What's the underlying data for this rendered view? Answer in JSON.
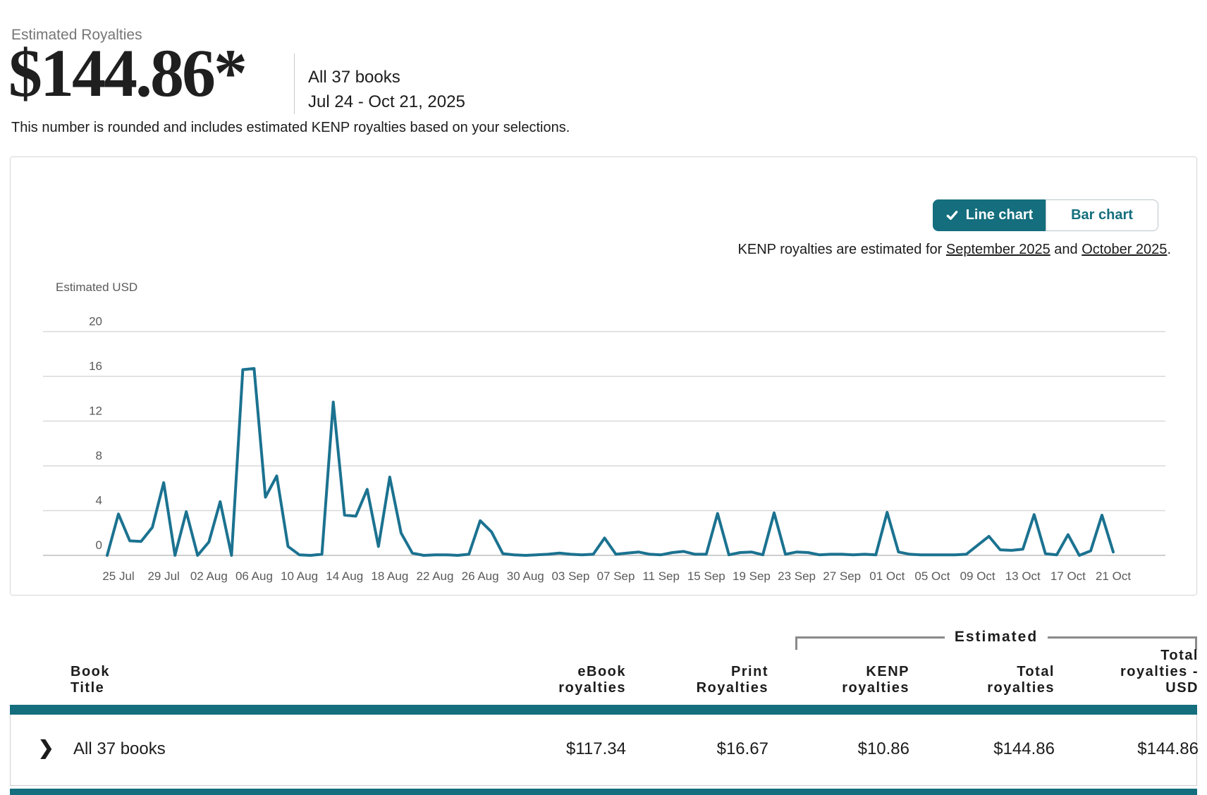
{
  "colors": {
    "accent_teal": "#146e7d",
    "line": "#1b7290",
    "text_dark": "#1c1c1c",
    "text_gray": "#767676",
    "axis_text": "#5a5a5a",
    "grid": "#d9d9d9",
    "grid_zero": "#bdbdbd",
    "panel_border": "#d5d5d5",
    "bracket": "#8a8a8a"
  },
  "header": {
    "label": "Estimated Royalties",
    "amount": "$144.86*",
    "scope": "All 37 books",
    "date_range": "Jul 24 - Oct 21, 2025",
    "note": "This number is rounded and includes estimated KENP royalties based on your selections."
  },
  "chart_panel": {
    "toggle": {
      "line_label": "Line chart",
      "bar_label": "Bar chart",
      "selected": "Line chart"
    },
    "kenp_note": {
      "prefix": "KENP royalties are estimated for ",
      "link1": "September 2025",
      "middle": " and ",
      "link2": "October 2025",
      "suffix": "."
    }
  },
  "chart_data": {
    "type": "line",
    "title": "",
    "xlabel": "",
    "ylabel": "Estimated USD",
    "ylim": [
      0,
      20
    ],
    "grid": true,
    "legend": "none",
    "y_ticks": [
      20,
      16,
      12,
      8,
      4,
      0
    ],
    "x_tick_labels": [
      "25 Jul",
      "29 Jul",
      "02 Aug",
      "06 Aug",
      "10 Aug",
      "14 Aug",
      "18 Aug",
      "22 Aug",
      "26 Aug",
      "30 Aug",
      "03 Sep",
      "07 Sep",
      "11 Sep",
      "15 Sep",
      "19 Sep",
      "23 Sep",
      "27 Sep",
      "01 Oct",
      "05 Oct",
      "09 Oct",
      "13 Oct",
      "17 Oct",
      "21 Oct"
    ],
    "x": [
      "Jul 24",
      "Jul 25",
      "Jul 26",
      "Jul 27",
      "Jul 28",
      "Jul 29",
      "Jul 30",
      "Jul 31",
      "Aug 01",
      "Aug 02",
      "Aug 03",
      "Aug 04",
      "Aug 05",
      "Aug 06",
      "Aug 07",
      "Aug 08",
      "Aug 09",
      "Aug 10",
      "Aug 11",
      "Aug 12",
      "Aug 13",
      "Aug 14",
      "Aug 15",
      "Aug 16",
      "Aug 17",
      "Aug 18",
      "Aug 19",
      "Aug 20",
      "Aug 21",
      "Aug 22",
      "Aug 23",
      "Aug 24",
      "Aug 25",
      "Aug 26",
      "Aug 27",
      "Aug 28",
      "Aug 29",
      "Aug 30",
      "Aug 31",
      "Sep 01",
      "Sep 02",
      "Sep 03",
      "Sep 04",
      "Sep 05",
      "Sep 06",
      "Sep 07",
      "Sep 08",
      "Sep 09",
      "Sep 10",
      "Sep 11",
      "Sep 12",
      "Sep 13",
      "Sep 14",
      "Sep 15",
      "Sep 16",
      "Sep 17",
      "Sep 18",
      "Sep 19",
      "Sep 20",
      "Sep 21",
      "Sep 22",
      "Sep 23",
      "Sep 24",
      "Sep 25",
      "Sep 26",
      "Sep 27",
      "Sep 28",
      "Sep 29",
      "Sep 30",
      "Oct 01",
      "Oct 02",
      "Oct 03",
      "Oct 04",
      "Oct 05",
      "Oct 06",
      "Oct 07",
      "Oct 08",
      "Oct 09",
      "Oct 10",
      "Oct 11",
      "Oct 12",
      "Oct 13",
      "Oct 14",
      "Oct 15",
      "Oct 16",
      "Oct 17",
      "Oct 18",
      "Oct 19",
      "Oct 20",
      "Oct 21"
    ],
    "values": [
      0,
      3.7,
      1.3,
      1.25,
      2.5,
      6.5,
      0,
      3.9,
      0,
      1.2,
      4.8,
      0,
      16.6,
      16.7,
      5.2,
      7.1,
      0.8,
      0.05,
      0,
      0.1,
      13.7,
      3.6,
      3.5,
      5.9,
      0.8,
      7.0,
      2.0,
      0.2,
      0,
      0.05,
      0.05,
      0,
      0.1,
      3.1,
      2.1,
      0.15,
      0.05,
      0,
      0.05,
      0.1,
      0.2,
      0.1,
      0.05,
      0.1,
      1.55,
      0.1,
      0.2,
      0.3,
      0.1,
      0.05,
      0.25,
      0.35,
      0.1,
      0.1,
      3.75,
      0.05,
      0.25,
      0.3,
      0.05,
      3.8,
      0.1,
      0.3,
      0.25,
      0.05,
      0.1,
      0.1,
      0.05,
      0.1,
      0.05,
      3.85,
      0.3,
      0.1,
      0.05,
      0.05,
      0.05,
      0.05,
      0.1,
      0.9,
      1.7,
      0.5,
      0.45,
      0.55,
      3.65,
      0.15,
      0.05,
      1.85,
      0,
      0.4,
      3.6,
      0.3
    ]
  },
  "table": {
    "group_label": "Estimated",
    "headers": {
      "book_title": "Book\nTitle",
      "ebook": "eBook\nroyalties",
      "print": "Print\nRoyalties",
      "kenp": "KENP\nroyalties",
      "total": "Total\nroyalties",
      "total_usd": "Total\nroyalties -\nUSD"
    },
    "row": {
      "title": "All 37 books",
      "ebook": "$117.34",
      "print": "$16.67",
      "kenp": "$10.86",
      "total": "$144.86",
      "total_usd": "$144.86"
    }
  }
}
